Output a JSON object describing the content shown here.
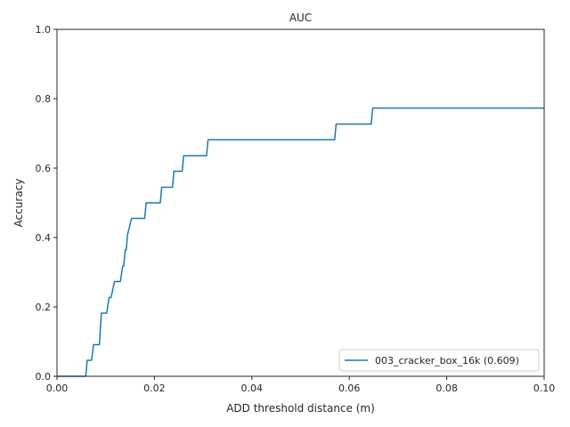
{
  "chart_data": {
    "type": "line",
    "title": "AUC",
    "xlabel": "ADD threshold distance (m)",
    "ylabel": "Accuracy",
    "xlim": [
      0.0,
      0.1
    ],
    "ylim": [
      0.0,
      1.0
    ],
    "xticks": [
      0.0,
      0.02,
      0.04,
      0.06,
      0.08,
      0.1
    ],
    "xtick_labels": [
      "0.00",
      "0.02",
      "0.04",
      "0.06",
      "0.08",
      "0.10"
    ],
    "yticks": [
      0.0,
      0.2,
      0.4,
      0.6,
      0.8,
      1.0
    ],
    "ytick_labels": [
      "0.0",
      "0.2",
      "0.4",
      "0.6",
      "0.8",
      "1.0"
    ],
    "grid": false,
    "legend_position": "lower-right",
    "series": [
      {
        "name": "003_cracker_box_16k (0.609)",
        "color": "#1f77b4",
        "x": [
          0.0,
          0.0059,
          0.0062,
          0.0071,
          0.0075,
          0.0087,
          0.0091,
          0.0102,
          0.0107,
          0.0111,
          0.0118,
          0.0123,
          0.013,
          0.0135,
          0.0137,
          0.014,
          0.0142,
          0.0145,
          0.0153,
          0.0155,
          0.018,
          0.0183,
          0.0212,
          0.0215,
          0.0237,
          0.024,
          0.0257,
          0.026,
          0.0307,
          0.031,
          0.057,
          0.0573,
          0.0645,
          0.0648,
          0.1
        ],
        "y": [
          0.0,
          0.0,
          0.046,
          0.046,
          0.091,
          0.091,
          0.182,
          0.182,
          0.227,
          0.227,
          0.273,
          0.273,
          0.273,
          0.318,
          0.318,
          0.364,
          0.364,
          0.409,
          0.455,
          0.455,
          0.455,
          0.5,
          0.5,
          0.545,
          0.545,
          0.591,
          0.591,
          0.636,
          0.636,
          0.682,
          0.682,
          0.727,
          0.727,
          0.773,
          0.773
        ]
      }
    ]
  }
}
